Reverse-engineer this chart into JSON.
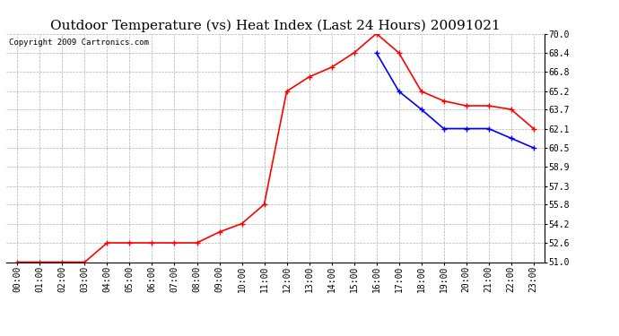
{
  "title": "Outdoor Temperature (vs) Heat Index (Last 24 Hours) 20091021",
  "copyright": "Copyright 2009 Cartronics.com",
  "hours": [
    "00:00",
    "01:00",
    "02:00",
    "03:00",
    "04:00",
    "05:00",
    "06:00",
    "07:00",
    "08:00",
    "09:00",
    "10:00",
    "11:00",
    "12:00",
    "13:00",
    "14:00",
    "15:00",
    "16:00",
    "17:00",
    "18:00",
    "19:00",
    "20:00",
    "21:00",
    "22:00",
    "23:00"
  ],
  "temp": [
    51.0,
    51.0,
    51.0,
    51.0,
    52.6,
    52.6,
    52.6,
    52.6,
    52.6,
    53.5,
    54.2,
    55.8,
    65.2,
    66.4,
    67.2,
    68.4,
    70.0,
    68.4,
    65.2,
    64.4,
    64.0,
    64.0,
    63.7,
    62.1
  ],
  "heat_index": [
    null,
    null,
    null,
    null,
    null,
    null,
    null,
    null,
    null,
    null,
    null,
    null,
    null,
    null,
    null,
    null,
    68.4,
    65.2,
    63.7,
    62.1,
    62.1,
    62.1,
    61.3,
    60.5
  ],
  "temp_color": "#ff0000",
  "heat_color": "#0000ff",
  "bg_color": "#ffffff",
  "grid_color": "#b0b0b0",
  "ylim_min": 51.0,
  "ylim_max": 70.0,
  "yticks": [
    51.0,
    52.6,
    54.2,
    55.8,
    57.3,
    58.9,
    60.5,
    62.1,
    63.7,
    65.2,
    66.8,
    68.4,
    70.0
  ],
  "title_fontsize": 11,
  "copyright_fontsize": 6.5,
  "tick_fontsize": 7,
  "marker_size": 4,
  "linewidth": 1.2
}
